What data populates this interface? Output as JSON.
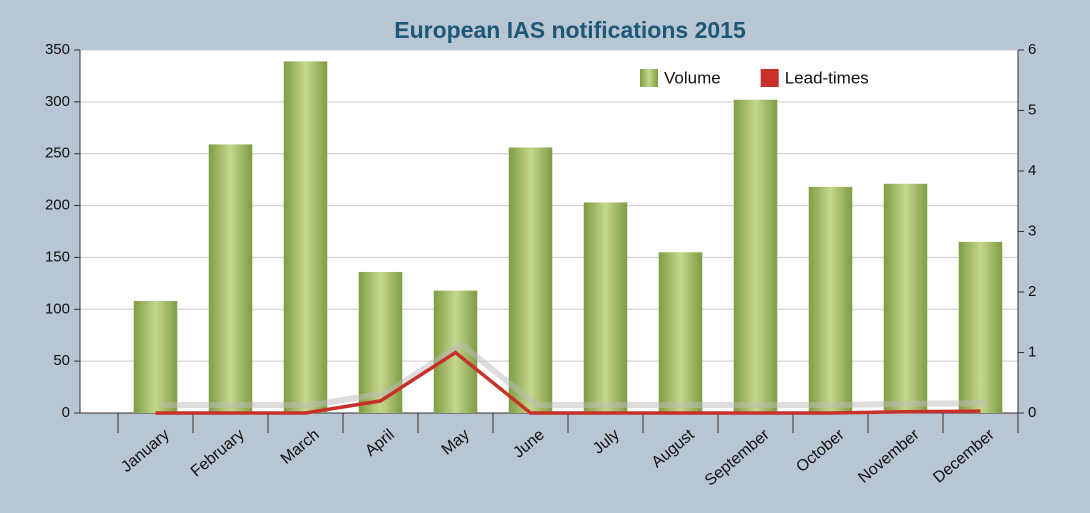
{
  "chart_data": {
    "type": "bar-line",
    "title": "European IAS notifications 2015",
    "categories": [
      "January",
      "February",
      "March",
      "April",
      "May",
      "June",
      "July",
      "August",
      "September",
      "October",
      "November",
      "December"
    ],
    "series": [
      {
        "name": "Volume",
        "type": "bar",
        "color": "#8fab52",
        "values": [
          108,
          259,
          339,
          136,
          118,
          256,
          203,
          155,
          302,
          218,
          221,
          165
        ]
      },
      {
        "name": "Lead-times",
        "type": "line",
        "axis": "y2",
        "color": "#c8312a",
        "values": [
          0,
          0,
          0,
          0.2,
          1.0,
          0,
          0,
          0,
          0,
          0,
          0.02,
          0.03
        ]
      }
    ],
    "ylim": [
      0,
      350
    ],
    "yticks": [
      0,
      50,
      100,
      150,
      200,
      250,
      300,
      350
    ],
    "y2lim": [
      0,
      6
    ],
    "y2ticks": [
      0,
      1,
      2,
      3,
      4,
      5,
      6
    ],
    "grid": true,
    "legend": "top-right"
  }
}
